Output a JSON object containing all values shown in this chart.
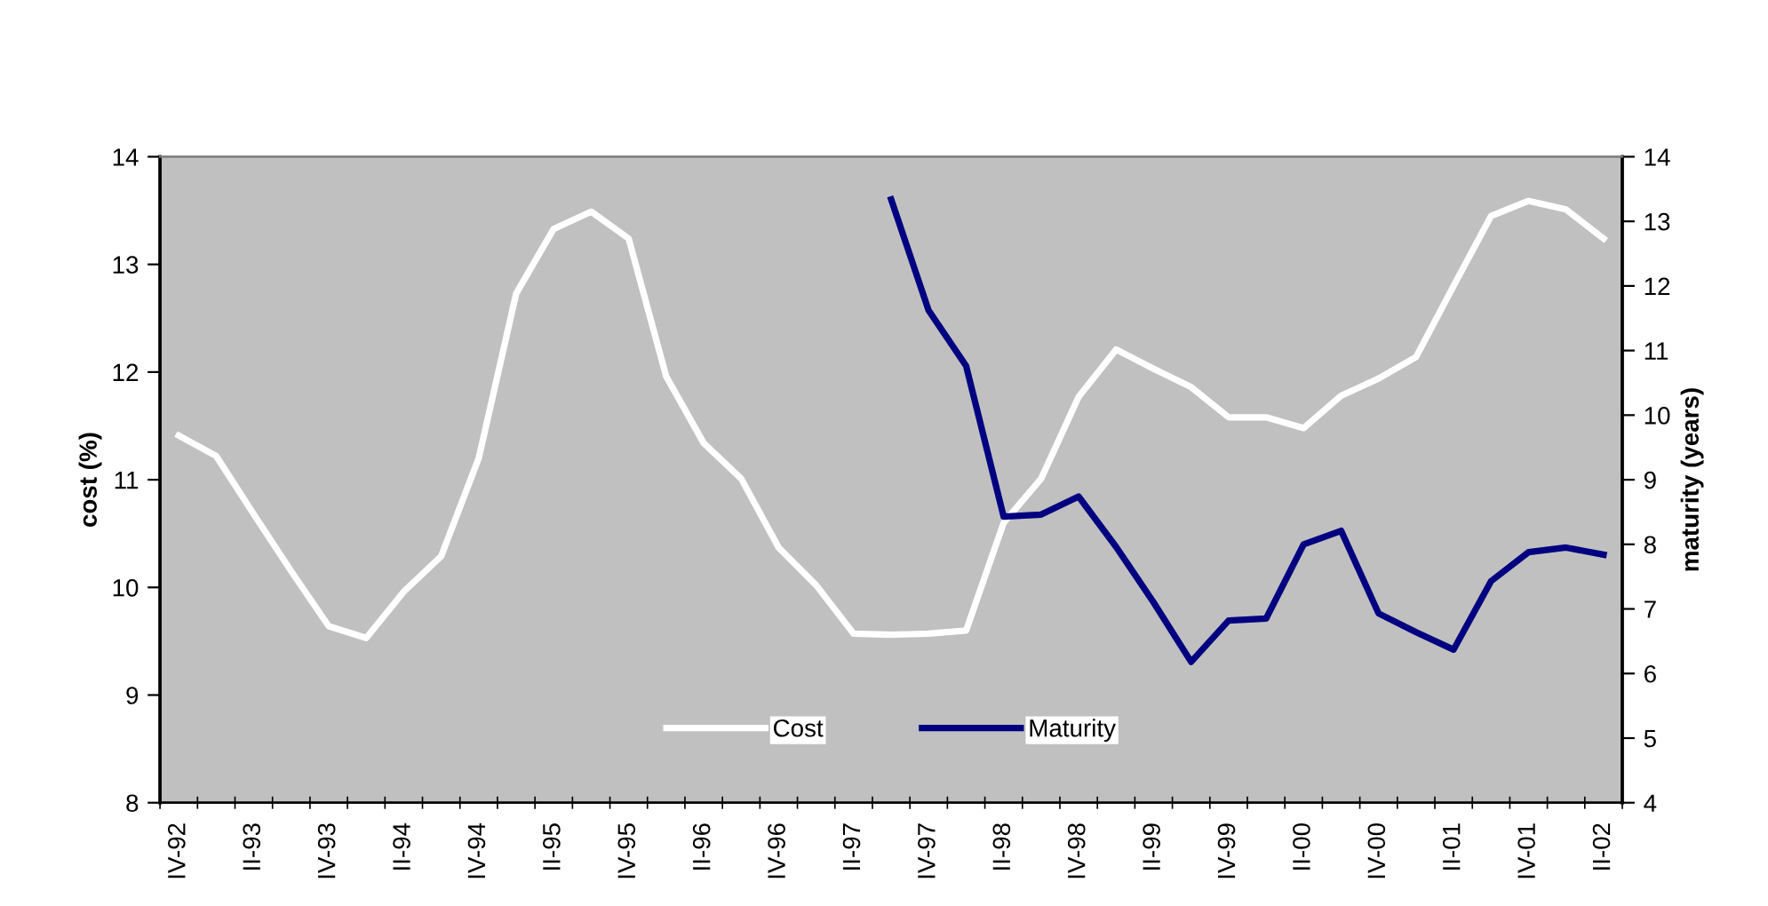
{
  "chart_data": {
    "type": "line",
    "ylabel": "cost (%)",
    "y2label": "maturity (years)",
    "categories": [
      "IV-92",
      null,
      "II-93",
      null,
      "IV-93",
      null,
      "II-94",
      null,
      "IV-94",
      null,
      "II-95",
      null,
      "IV-95",
      null,
      "II-96",
      null,
      "IV-96",
      null,
      "II-97",
      null,
      "IV-97",
      null,
      "II-98",
      null,
      "IV-98",
      null,
      "II-99",
      null,
      "IV-99",
      null,
      "II-00",
      null,
      "IV-00",
      null,
      "II-01",
      null,
      "IV-01",
      null,
      "II-02"
    ],
    "series": [
      {
        "name": "Cost",
        "color": "#ffffff",
        "values": [
          11.41,
          11.22,
          10.68,
          10.15,
          9.64,
          9.53,
          9.96,
          10.29,
          11.2,
          12.73,
          13.33,
          13.49,
          13.24,
          11.96,
          11.34,
          11.01,
          10.37,
          10.02,
          9.57,
          9.56,
          9.57,
          9.6,
          10.6,
          11.01,
          11.77,
          12.21,
          12.03,
          11.86,
          11.58,
          11.58,
          11.48,
          11.78,
          11.94,
          12.14,
          12.8,
          13.45,
          13.59,
          13.51,
          13.24
        ]
      },
      {
        "name": "Maturity",
        "color": "#000080",
        "axis": "y2",
        "values": [
          null,
          null,
          null,
          null,
          null,
          null,
          null,
          null,
          null,
          null,
          null,
          null,
          null,
          null,
          null,
          null,
          null,
          null,
          null,
          13.34,
          11.62,
          10.76,
          8.43,
          8.46,
          8.74,
          7.96,
          7.1,
          6.18,
          6.82,
          6.85,
          8.0,
          8.21,
          6.93,
          6.64,
          6.37,
          7.43,
          7.88,
          7.95,
          7.84
        ]
      }
    ],
    "ylim": [
      8,
      14
    ],
    "yticks": [
      8,
      9,
      10,
      11,
      12,
      13,
      14
    ],
    "y2lim": [
      4,
      14
    ],
    "y2ticks": [
      4,
      5,
      6,
      7,
      8,
      9,
      10,
      11,
      12,
      13,
      14
    ],
    "grid": false,
    "legend": "bottom",
    "marker": "none",
    "line_style": "solid"
  }
}
